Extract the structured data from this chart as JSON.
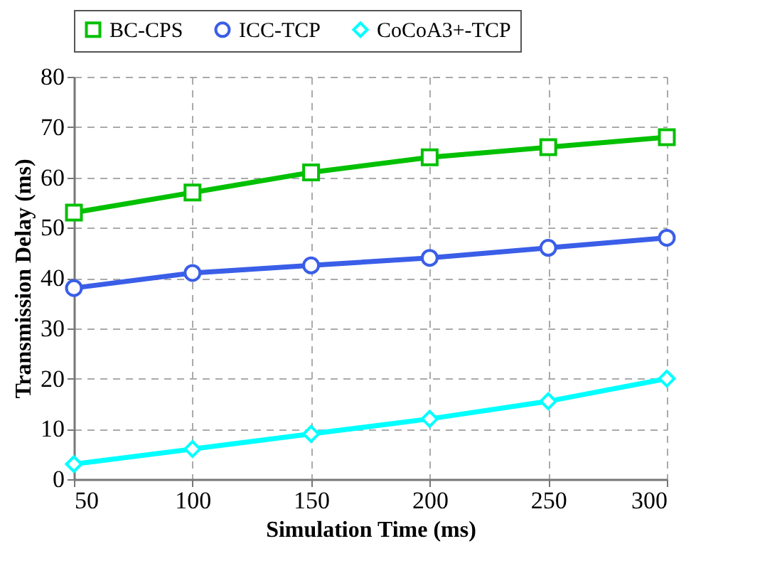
{
  "chart_data": {
    "type": "line",
    "xlabel": "Simulation Time (ms)",
    "ylabel": "Transmission Delay (ms)",
    "x": [
      50,
      100,
      150,
      200,
      250,
      300
    ],
    "series": [
      {
        "name": "BC-CPS",
        "color": "#00c000",
        "marker": "square",
        "values": [
          53,
          57,
          61,
          64,
          66,
          68
        ]
      },
      {
        "name": "ICC-TCP",
        "color": "#3a5ee8",
        "marker": "circle",
        "values": [
          38,
          41,
          42.5,
          44,
          46,
          48
        ]
      },
      {
        "name": "CoCoA3+-TCP",
        "color": "#00ffff",
        "marker": "diamond",
        "values": [
          3,
          6,
          9,
          12,
          15.5,
          20
        ]
      }
    ],
    "xlim": [
      50,
      300
    ],
    "xticks": [
      50,
      100,
      150,
      200,
      250,
      300
    ],
    "ylim": [
      0,
      80
    ],
    "yticks": [
      0,
      10,
      20,
      30,
      40,
      50,
      60,
      70,
      80
    ],
    "grid": true,
    "legend": "top",
    "line_style": "solid"
  }
}
